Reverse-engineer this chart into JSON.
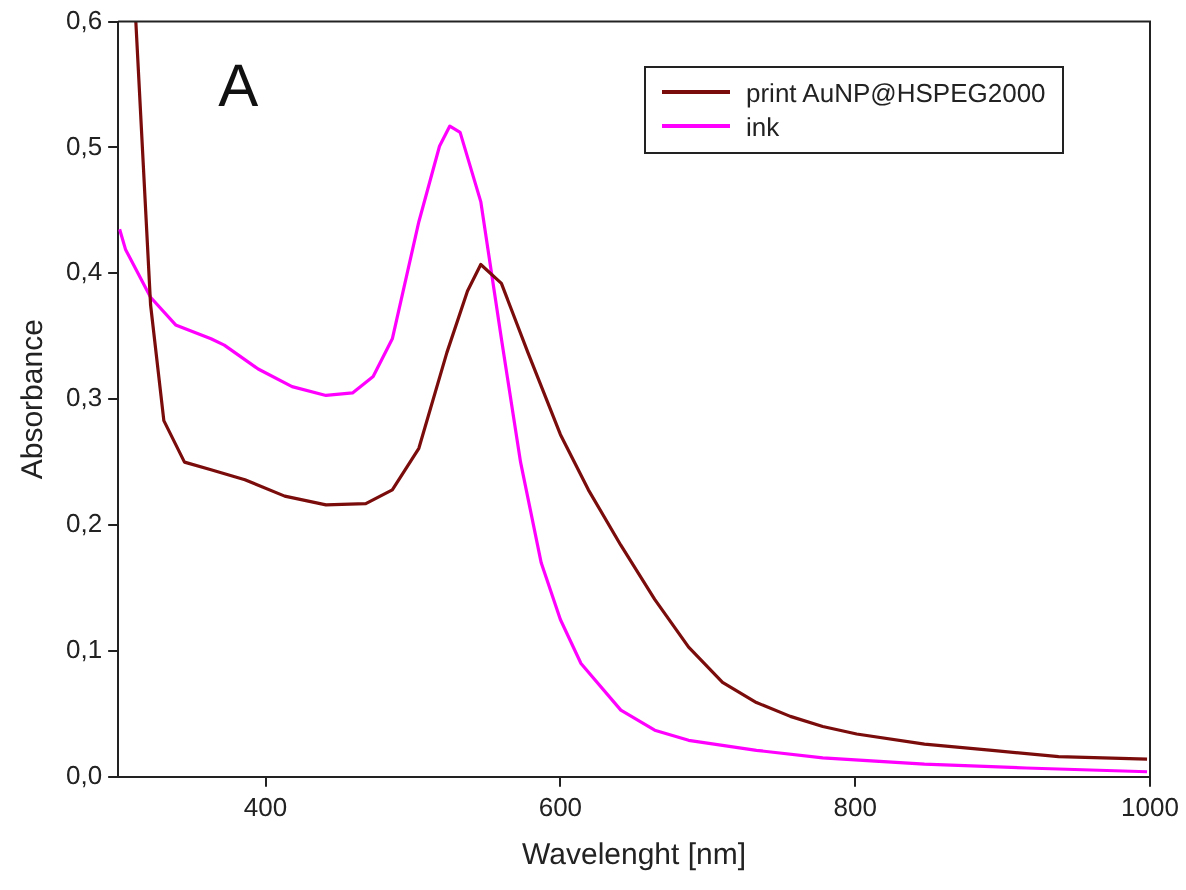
{
  "chart_data": {
    "type": "line",
    "xlabel": "Wavelenght [nm]",
    "ylabel": "Absorbance",
    "annotations": [
      "A"
    ],
    "xlim": [
      300,
      1000
    ],
    "ylim": [
      0,
      0.6
    ],
    "xticks": [
      400,
      600,
      800,
      1000
    ],
    "yticks": [
      {
        "value": 0,
        "label": "0,0"
      },
      {
        "value": 0.1,
        "label": "0,1"
      },
      {
        "value": 0.2,
        "label": "0,2"
      },
      {
        "value": 0.3,
        "label": "0,3"
      },
      {
        "value": 0.4,
        "label": "0,4"
      },
      {
        "value": 0.5,
        "label": "0,5"
      },
      {
        "value": 0.6,
        "label": "0,6"
      }
    ],
    "grid": false,
    "legend": "top right",
    "marker": "none",
    "line_style": "solid",
    "series": [
      {
        "name": "print AuNP@HSPEG2000",
        "color": "#7b0c0c",
        "x": [
          312,
          322,
          331,
          345,
          363,
          386,
          413,
          441,
          468,
          486,
          504,
          523,
          537,
          546,
          560,
          578,
          600,
          619,
          641,
          664,
          687,
          710,
          733,
          756,
          778,
          801,
          847,
          893,
          938,
          998
        ],
        "values": [
          0.6,
          0.375,
          0.283,
          0.25,
          0.244,
          0.236,
          0.223,
          0.216,
          0.217,
          0.228,
          0.261,
          0.337,
          0.386,
          0.407,
          0.392,
          0.337,
          0.272,
          0.228,
          0.184,
          0.141,
          0.103,
          0.075,
          0.059,
          0.048,
          0.04,
          0.034,
          0.026,
          0.021,
          0.016,
          0.014
        ]
      },
      {
        "name": "ink",
        "color": "#ff00ff",
        "x": [
          301,
          305,
          322,
          339,
          363,
          372,
          395,
          418,
          441,
          459,
          473,
          486,
          504,
          518,
          525,
          532,
          546,
          560,
          573,
          587,
          600,
          614,
          641,
          664,
          687,
          733,
          778,
          847,
          916,
          998
        ],
        "values": [
          0.435,
          0.419,
          0.381,
          0.359,
          0.348,
          0.343,
          0.324,
          0.31,
          0.303,
          0.305,
          0.318,
          0.348,
          0.441,
          0.501,
          0.517,
          0.512,
          0.457,
          0.348,
          0.25,
          0.17,
          0.125,
          0.09,
          0.053,
          0.037,
          0.029,
          0.021,
          0.015,
          0.01,
          0.007,
          0.004
        ]
      }
    ]
  }
}
